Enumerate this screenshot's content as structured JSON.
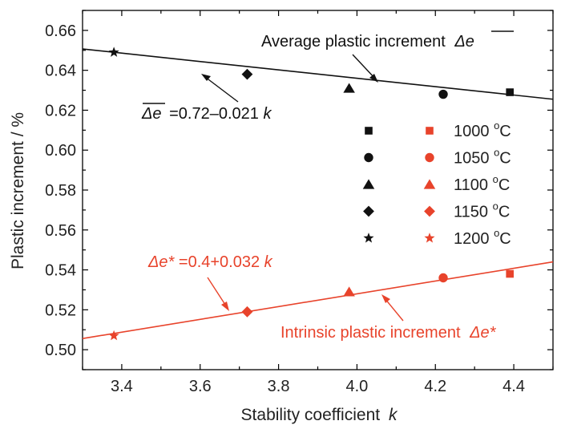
{
  "chart_data": {
    "type": "scatter",
    "xlabel": "Stability coefficient",
    "xlabel_var": "k",
    "ylabel": "Plastic increment / %",
    "xlim": [
      3.3,
      4.5
    ],
    "ylim": [
      0.49,
      0.67
    ],
    "x_ticks": [
      "3.4",
      "3.6",
      "3.8",
      "4.0",
      "4.2",
      "4.4"
    ],
    "x_tick_values": [
      3.4,
      3.6,
      3.8,
      4.0,
      4.2,
      4.4
    ],
    "y_ticks": [
      "0.50",
      "0.52",
      "0.54",
      "0.56",
      "0.58",
      "0.60",
      "0.62",
      "0.64",
      "0.66"
    ],
    "y_tick_values": [
      0.5,
      0.52,
      0.54,
      0.56,
      0.58,
      0.6,
      0.62,
      0.64,
      0.66
    ],
    "grid": false,
    "temperatures": [
      "1000",
      "1050",
      "1100",
      "1150",
      "1200"
    ],
    "temp_unit": "oC",
    "markers": [
      "square",
      "circle",
      "triangle",
      "diamond",
      "star"
    ],
    "series": [
      {
        "group": "average",
        "color": "#111111",
        "points": [
          {
            "x": 4.39,
            "y": 0.629
          },
          {
            "x": 4.22,
            "y": 0.628
          },
          {
            "x": 3.98,
            "y": 0.631
          },
          {
            "x": 3.72,
            "y": 0.638
          },
          {
            "x": 3.38,
            "y": 0.649
          }
        ],
        "fit": {
          "intercept": 0.72,
          "slope": -0.021
        }
      },
      {
        "group": "intrinsic",
        "color": "#e8432b",
        "points": [
          {
            "x": 4.39,
            "y": 0.538
          },
          {
            "x": 4.22,
            "y": 0.536
          },
          {
            "x": 3.98,
            "y": 0.529
          },
          {
            "x": 3.72,
            "y": 0.519
          },
          {
            "x": 3.38,
            "y": 0.507
          }
        ],
        "fit": {
          "intercept": 0.4,
          "slope": 0.032
        }
      }
    ],
    "annotations": {
      "average_label": "Average plastic increment",
      "average_symbol": "Δe",
      "average_eq_symbol": "Δe",
      "average_eq": "=0.72–0.021",
      "intrinsic_label": "Intrinsic plastic increment",
      "intrinsic_symbol": "Δe*",
      "intrinsic_eq_symbol": "Δe*",
      "intrinsic_eq": "=0.4+0.032",
      "eq_var": "k"
    },
    "legend": "center-right",
    "colors": {
      "average": "#111111",
      "intrinsic": "#e8432b"
    }
  }
}
